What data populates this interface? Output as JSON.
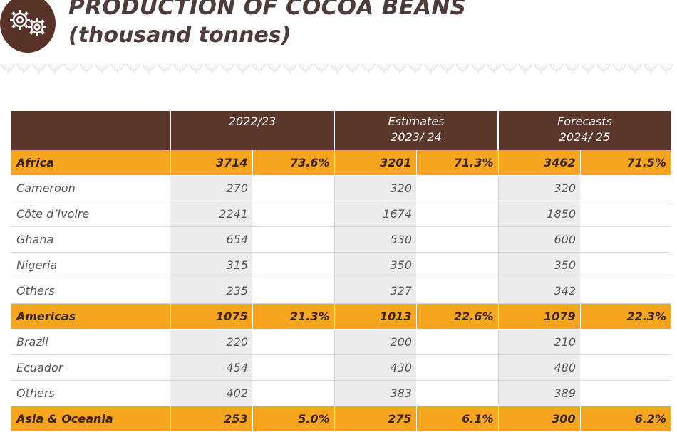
{
  "title": {
    "line1": "PRODUCTION OF COCOA BEANS",
    "line2": "(thousand tonnes)"
  },
  "logo": {
    "icon": "gears-icon",
    "color": "#5a3328"
  },
  "colors": {
    "header_bg": "#5b362b",
    "region_bg": "#f5a61e",
    "title_text": "#4e3c3a"
  },
  "table": {
    "headers": [
      {
        "line1": "",
        "line2": ""
      },
      {
        "line1": "2022/23",
        "line2": ""
      },
      {
        "line1": "Estimates",
        "line2": "2023/ 24"
      },
      {
        "line1": "Forecasts",
        "line2": "2024/ 25"
      }
    ],
    "rows": [
      {
        "type": "region",
        "label": "Africa",
        "v1": "3714",
        "p1": "73.6%",
        "v2": "3201",
        "p2": "71.3%",
        "v3": "3462",
        "p3": "71.5%"
      },
      {
        "type": "country",
        "label": "Cameroon",
        "v1": "270",
        "v2": "320",
        "v3": "320"
      },
      {
        "type": "country",
        "label": "Côte d’Ivoire",
        "v1": "2241",
        "v2": "1674",
        "v3": "1850"
      },
      {
        "type": "country",
        "label": "Ghana",
        "v1": "654",
        "v2": "530",
        "v3": "600"
      },
      {
        "type": "country",
        "label": "Nigeria",
        "v1": "315",
        "v2": "350",
        "v3": "350"
      },
      {
        "type": "country",
        "label": "Others",
        "v1": "235",
        "v2": "327",
        "v3": "342"
      },
      {
        "type": "region",
        "label": "Americas",
        "v1": "1075",
        "p1": "21.3%",
        "v2": "1013",
        "p2": "22.6%",
        "v3": "1079",
        "p3": "22.3%"
      },
      {
        "type": "country",
        "label": "Brazil",
        "v1": "220",
        "v2": "200",
        "v3": "210"
      },
      {
        "type": "country",
        "label": "Ecuador",
        "v1": "454",
        "v2": "430",
        "v3": "480"
      },
      {
        "type": "country",
        "label": "Others",
        "v1": "402",
        "v2": "383",
        "v3": "389"
      },
      {
        "type": "region",
        "label": "Asia & Oceania",
        "v1": "253",
        "p1": "5.0%",
        "v2": "275",
        "p2": "6.1%",
        "v3": "300",
        "p3": "6.2%"
      }
    ]
  }
}
